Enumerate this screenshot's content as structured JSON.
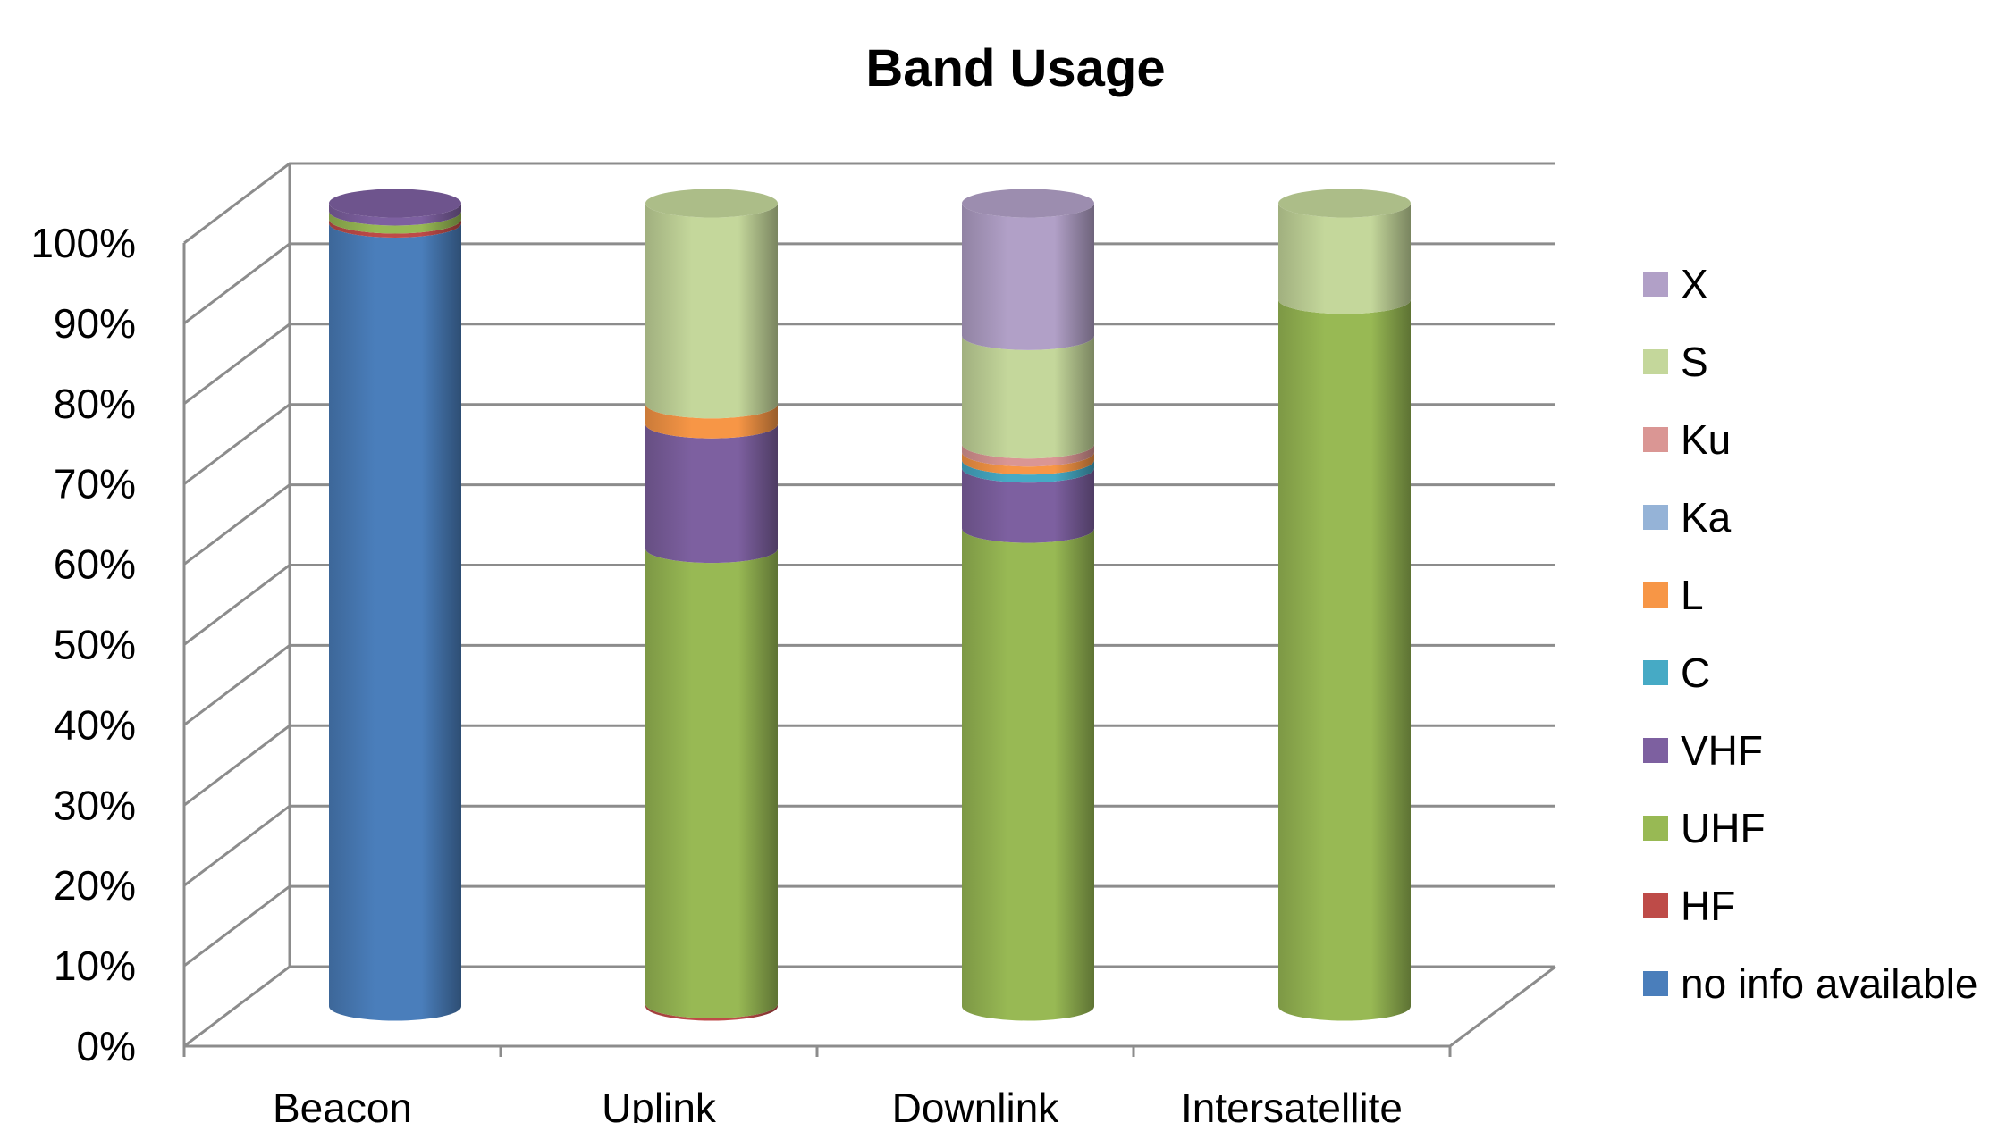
{
  "chart_data": {
    "type": "bar",
    "stacked": "percent",
    "style": "3d-cylinder",
    "title": "Band Usage",
    "xlabel": "",
    "ylabel": "",
    "ylim": [
      0,
      100
    ],
    "y_ticks": [
      "0%",
      "10%",
      "20%",
      "30%",
      "40%",
      "50%",
      "60%",
      "70%",
      "80%",
      "90%",
      "100%"
    ],
    "grid": true,
    "legend_position": "right",
    "categories": [
      "Beacon",
      "Uplink",
      "Downlink",
      "Intersatellite"
    ],
    "series": [
      {
        "name": "no info available",
        "color": "#4a7ebb",
        "values": [
          97.5,
          0,
          0,
          0
        ]
      },
      {
        "name": "HF",
        "color": "#be4b48",
        "values": [
          0.5,
          0.3,
          0,
          0
        ]
      },
      {
        "name": "UHF",
        "color": "#98b954",
        "values": [
          1.0,
          56.7,
          59.5,
          88.0
        ]
      },
      {
        "name": "VHF",
        "color": "#7d60a0",
        "values": [
          1.0,
          15.5,
          7.5,
          0
        ]
      },
      {
        "name": "C",
        "color": "#46aac5",
        "values": [
          0,
          0,
          1.0,
          0
        ]
      },
      {
        "name": "L",
        "color": "#f79646",
        "values": [
          0,
          2.5,
          1.0,
          0
        ]
      },
      {
        "name": "Ka",
        "color": "#95b3d7",
        "values": [
          0,
          0,
          0,
          0
        ]
      },
      {
        "name": "Ku",
        "color": "#da9694",
        "values": [
          0,
          0,
          1.0,
          0
        ]
      },
      {
        "name": "S",
        "color": "#c4d79b",
        "values": [
          0,
          25.0,
          13.5,
          12.0
        ]
      },
      {
        "name": "X",
        "color": "#b1a0c7",
        "values": [
          0,
          0,
          16.5,
          0
        ]
      }
    ]
  }
}
